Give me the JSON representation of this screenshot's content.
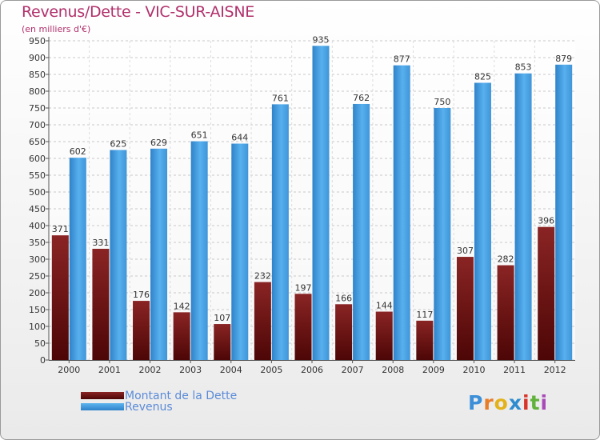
{
  "chart_data": {
    "type": "bar",
    "title": "Revenus/Dette - VIC-SUR-AISNE",
    "subtitle": "(en milliers d'€)",
    "categories": [
      "2000",
      "2001",
      "2002",
      "2003",
      "2004",
      "2005",
      "2006",
      "2007",
      "2008",
      "2009",
      "2010",
      "2011",
      "2012"
    ],
    "series": [
      {
        "name": "Montant de la Dette",
        "color": "#7a1616",
        "values": [
          371,
          331,
          176,
          142,
          107,
          232,
          197,
          166,
          144,
          117,
          307,
          282,
          396
        ],
        "labels": [
          "371",
          "331",
          "176",
          "142",
          "107",
          "232",
          "197",
          "166",
          "144",
          "117",
          "307",
          "282",
          "396"
        ]
      },
      {
        "name": "Revenus",
        "color": "#4aa3e6",
        "values": [
          602,
          625,
          629,
          651,
          644,
          761,
          935,
          762,
          877,
          750,
          825,
          853,
          879
        ],
        "labels": [
          "602",
          "625",
          "629",
          "651",
          "644",
          "761",
          "935",
          "762",
          "877",
          "750",
          "825",
          "853",
          "879"
        ]
      }
    ],
    "ylim": [
      0,
      950
    ],
    "ytick_step": 50,
    "yticks": [
      "0",
      "50",
      "100",
      "150",
      "200",
      "250",
      "300",
      "350",
      "400",
      "450",
      "500",
      "550",
      "600",
      "650",
      "700",
      "750",
      "800",
      "850",
      "900",
      "950"
    ],
    "grid": true,
    "legend_position": "bottom-left"
  },
  "logo": {
    "letters": [
      "P",
      "r",
      "o",
      "x",
      "i",
      "t",
      "i"
    ],
    "colors": [
      "#3c8fd8",
      "#e87d27",
      "#e3b21a",
      "#2f8ccf",
      "#d9342b",
      "#61b23b",
      "#a84ab8"
    ]
  }
}
